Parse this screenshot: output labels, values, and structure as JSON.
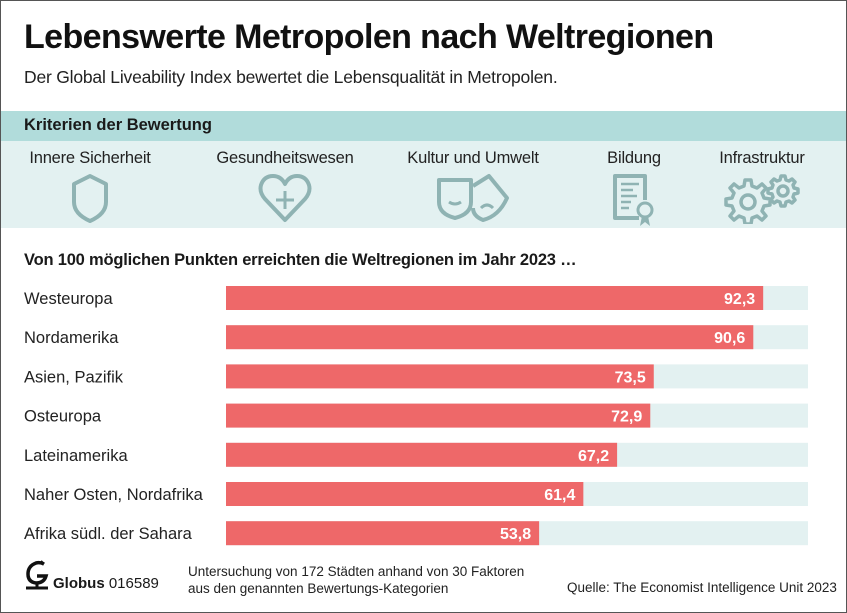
{
  "header": {
    "title": "Lebenswerte Metropolen nach Weltregionen",
    "subtitle": "Der Global Liveability Index bewertet die Lebensqualität in Metropolen."
  },
  "criteria": {
    "heading": "Kriterien der Bewertung",
    "items": [
      {
        "label": "Innere Sicherheit",
        "icon": "shield-icon"
      },
      {
        "label": "Gesundheitswesen",
        "icon": "heart-plus-icon"
      },
      {
        "label": "Kultur und Umwelt",
        "icon": "theater-masks-icon"
      },
      {
        "label": "Bildung",
        "icon": "certificate-icon"
      },
      {
        "label": "Infrastruktur",
        "icon": "gears-icon"
      }
    ]
  },
  "colors": {
    "bar": "#ee6869",
    "track": "#e3f1f1",
    "criteria_header": "#b1dcdb",
    "criteria_body": "#e3f1f1",
    "icon": "#8fb3b3"
  },
  "chart_data": {
    "type": "bar",
    "orientation": "horizontal",
    "title": "Von 100 möglichen Punkten erreichten die Weltregionen im Jahr 2023 …",
    "categories": [
      "Westeuropa",
      "Nordamerika",
      "Asien, Pazifik",
      "Osteuropa",
      "Lateinamerika",
      "Naher Osten, Nordafrika",
      "Afrika südl. der Sahara"
    ],
    "values": [
      92.3,
      90.6,
      73.5,
      72.9,
      67.2,
      61.4,
      53.8
    ],
    "value_labels": [
      "92,3",
      "90,6",
      "73,5",
      "72,9",
      "67,2",
      "61,4",
      "53,8"
    ],
    "xlim": [
      0,
      100
    ],
    "xlabel": "",
    "ylabel": "",
    "grid": false,
    "legend": "none"
  },
  "footer": {
    "brand": "Globus",
    "number": "016589",
    "note_line1": "Untersuchung von 172 Städten anhand von 30 Faktoren",
    "note_line2": "aus den genannten Bewertungs-Kategorien",
    "source": "Quelle: The Economist Intelligence Unit 2023"
  }
}
